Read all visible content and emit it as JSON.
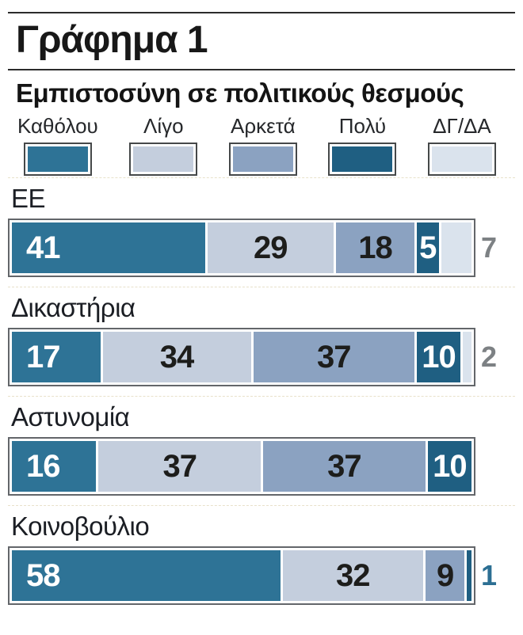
{
  "title": "Γράφημα 1",
  "subtitle": "Εμπιστοσύνη σε πολιτικούς θεσμούς",
  "colors": {
    "katholou": "#2e7396",
    "ligo": "#c4cedd",
    "arketa": "#8ba2c1",
    "poly": "#1f5f82",
    "dgda": "#dae3ed",
    "text_white": "#ffffff",
    "text_dark": "#1d1d1b",
    "outside_gray": "#7d8184",
    "outside_teal": "#2c6f93",
    "bar_border": "#63666a",
    "rule": "#2b2b2b"
  },
  "legend": [
    {
      "label": "Καθόλου",
      "series": "katholou"
    },
    {
      "label": "Λίγο",
      "series": "ligo"
    },
    {
      "label": "Αρκετά",
      "series": "arketa"
    },
    {
      "label": "Πολύ",
      "series": "poly"
    },
    {
      "label": "ΔΓ/ΔΑ",
      "series": "dgda"
    }
  ],
  "chart_data": {
    "type": "bar",
    "orientation": "horizontal-stacked",
    "title": "Γράφημα 1",
    "subtitle": "Εμπιστοσύνη σε πολιτικούς θεσμούς",
    "legend_position": "top",
    "xlim": [
      0,
      100
    ],
    "unit": "percent",
    "categories": [
      "ΕΕ",
      "Δικαστήρια",
      "Αστυνομία",
      "Κοινοβούλιο"
    ],
    "series": [
      {
        "name": "Καθόλου",
        "values": [
          41,
          17,
          16,
          58
        ]
      },
      {
        "name": "Λίγο",
        "values": [
          29,
          34,
          37,
          32
        ]
      },
      {
        "name": "Αρκετά",
        "values": [
          18,
          37,
          37,
          9
        ]
      },
      {
        "name": "Πολύ",
        "values": [
          5,
          10,
          10,
          1
        ]
      },
      {
        "name": "ΔΓ/ΔΑ",
        "values": [
          7,
          2,
          0,
          0
        ]
      }
    ],
    "notes": "Small values (ΕΕ ΔΓ/ΔΑ=7, Δικαστήρια ΔΓ/ΔΑ=2, Κοινοβούλιο Πολύ=1) are labeled outside the right edge of the bar"
  },
  "rows": [
    {
      "label": "ΕΕ",
      "segments": [
        {
          "series": "katholou",
          "value": 41,
          "label": "41",
          "text": "white"
        },
        {
          "series": "ligo",
          "value": 29,
          "label": "29",
          "text": "dark"
        },
        {
          "series": "arketa",
          "value": 18,
          "label": "18",
          "text": "dark"
        },
        {
          "series": "poly",
          "value": 5,
          "label": "5",
          "text": "white"
        },
        {
          "series": "dgda",
          "value": 7,
          "label": "",
          "text": "dark"
        }
      ],
      "outside": {
        "label": "7",
        "color": "gray"
      }
    },
    {
      "label": "Δικαστήρια",
      "segments": [
        {
          "series": "katholou",
          "value": 17,
          "label": "17",
          "text": "white"
        },
        {
          "series": "ligo",
          "value": 34,
          "label": "34",
          "text": "dark"
        },
        {
          "series": "arketa",
          "value": 37,
          "label": "37",
          "text": "dark"
        },
        {
          "series": "poly",
          "value": 10,
          "label": "10",
          "text": "white"
        },
        {
          "series": "dgda",
          "value": 2,
          "label": "",
          "text": "dark"
        }
      ],
      "outside": {
        "label": "2",
        "color": "gray"
      }
    },
    {
      "label": "Αστυνομία",
      "segments": [
        {
          "series": "katholou",
          "value": 16,
          "label": "16",
          "text": "white"
        },
        {
          "series": "ligo",
          "value": 37,
          "label": "37",
          "text": "dark"
        },
        {
          "series": "arketa",
          "value": 37,
          "label": "37",
          "text": "dark"
        },
        {
          "series": "poly",
          "value": 10,
          "label": "10",
          "text": "white"
        }
      ],
      "outside": null
    },
    {
      "label": "Κοινοβούλιο",
      "segments": [
        {
          "series": "katholou",
          "value": 58,
          "label": "58",
          "text": "white"
        },
        {
          "series": "ligo",
          "value": 32,
          "label": "32",
          "text": "dark"
        },
        {
          "series": "arketa",
          "value": 9,
          "label": "9",
          "text": "dark"
        },
        {
          "series": "poly",
          "value": 1,
          "label": "",
          "text": "white"
        }
      ],
      "outside": {
        "label": "1",
        "color": "teal"
      }
    }
  ]
}
